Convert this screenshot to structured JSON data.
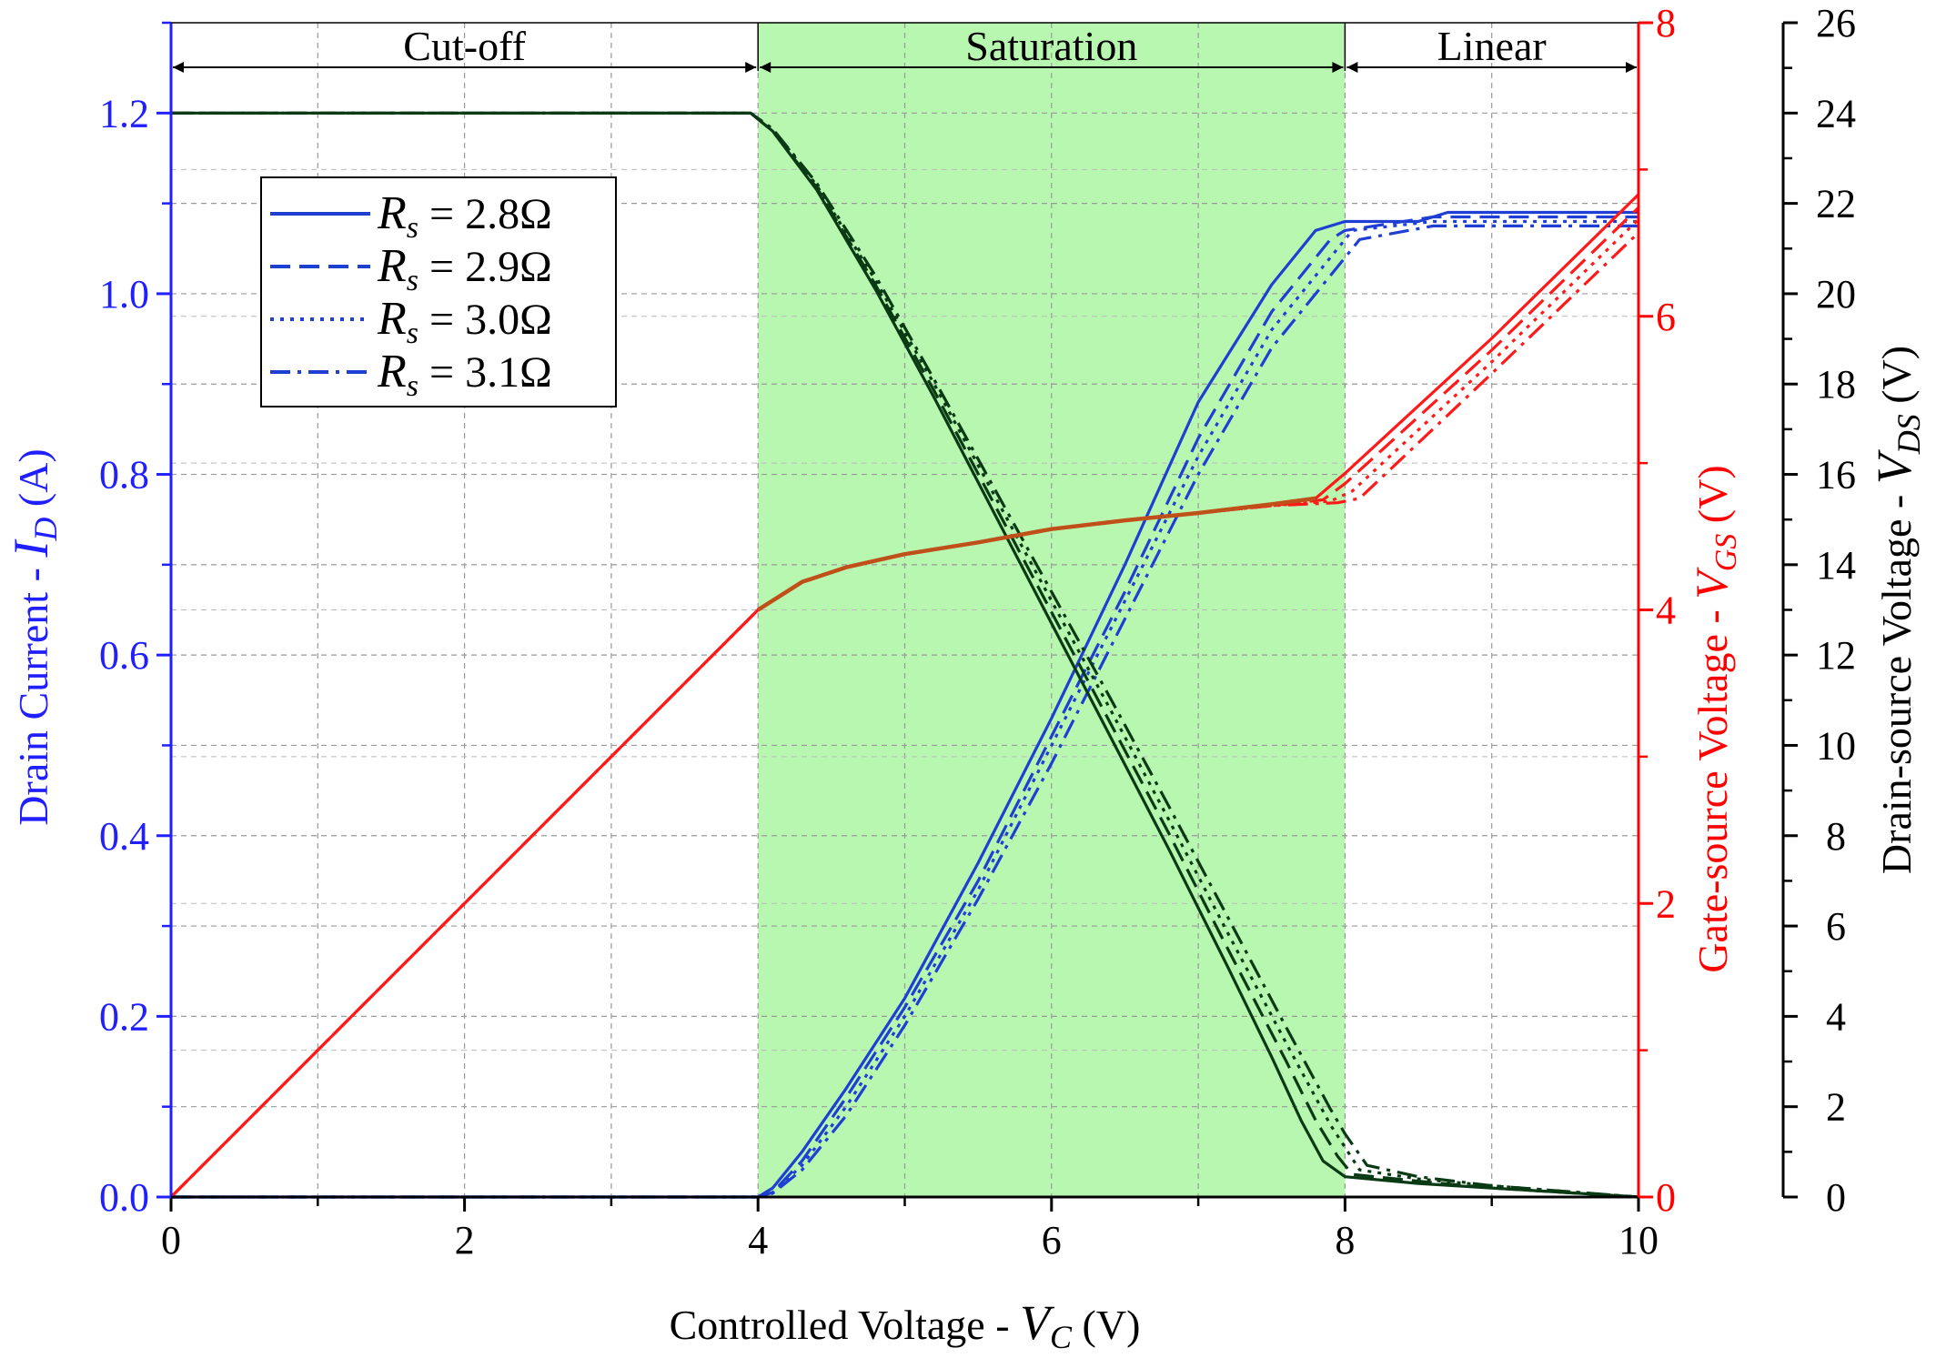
{
  "colors": {
    "drain_current": "#1f3fd4",
    "gate_source": "#ff1a1a",
    "gate_source_overlap": "#c0501a",
    "drain_source": "#0a3a14",
    "saturation_fill": "#b8f7b0",
    "axis_left": "#1f1fff",
    "axis_right1": "#ff0000",
    "axis_right2": "#000000"
  },
  "chart_data": {
    "type": "line",
    "xlabel": {
      "prefix": "Controlled Voltage - ",
      "symbol": "V",
      "sub": "C",
      "unit": " (V)"
    },
    "ylabel_left": {
      "prefix": "Drain Current - ",
      "symbol": "I",
      "sub": "D",
      "unit": " (A)"
    },
    "ylabel_right1": {
      "prefix": "Gate-source Voltage - ",
      "symbol": "V",
      "sub": "GS",
      "unit": " (V)"
    },
    "ylabel_right2": {
      "prefix": "Drain-source Voltage - ",
      "symbol": "V",
      "sub": "DS",
      "unit": " (V)"
    },
    "xlim": [
      0,
      10
    ],
    "ylim_left": [
      0,
      1.3
    ],
    "ylim_right1": [
      0,
      8
    ],
    "ylim_right2": [
      0,
      26
    ],
    "x_ticks": [
      "0",
      "2",
      "4",
      "6",
      "8",
      "10"
    ],
    "y_left_ticks": [
      "0.0",
      "0.2",
      "0.4",
      "0.6",
      "0.8",
      "1.0",
      "1.2"
    ],
    "y_right1_ticks": [
      "0",
      "2",
      "4",
      "6",
      "8"
    ],
    "y_right2_ticks": [
      "0",
      "2",
      "4",
      "6",
      "8",
      "10",
      "12",
      "14",
      "16",
      "18",
      "20",
      "22",
      "24",
      "26"
    ],
    "regions": [
      {
        "label": "Cut-off",
        "x_range": [
          0,
          4
        ]
      },
      {
        "label": "Saturation",
        "x_range": [
          4,
          8
        ]
      },
      {
        "label": "Linear",
        "x_range": [
          8,
          10
        ]
      }
    ],
    "legend": [
      {
        "symbol": "R",
        "sub": "s",
        "rest": " = 2.8Ω",
        "style": "solid"
      },
      {
        "symbol": "R",
        "sub": "s",
        "rest": " = 2.9Ω",
        "style": "dash"
      },
      {
        "symbol": "R",
        "sub": "s",
        "rest": " = 3.0Ω",
        "style": "dot"
      },
      {
        "symbol": "R",
        "sub": "s",
        "rest": " = 3.1Ω",
        "style": "dashdot"
      }
    ],
    "legend_position": "upper-left",
    "grid": true,
    "series": [
      {
        "quantity": "I_D",
        "axis": "left",
        "Rs": 2.8,
        "style": "solid",
        "x": [
          0,
          3.9,
          4.0,
          4.1,
          4.3,
          4.6,
          5.0,
          5.5,
          6.0,
          6.5,
          7.0,
          7.5,
          7.8,
          8.0,
          8.5,
          8.7,
          9.0,
          10.0
        ],
        "y": [
          0,
          0,
          0,
          0.01,
          0.05,
          0.12,
          0.22,
          0.37,
          0.53,
          0.7,
          0.88,
          1.01,
          1.07,
          1.08,
          1.08,
          1.09,
          1.09,
          1.09
        ]
      },
      {
        "quantity": "I_D",
        "axis": "left",
        "Rs": 2.9,
        "style": "dash",
        "x": [
          0,
          3.9,
          4.0,
          4.1,
          4.3,
          4.6,
          5.0,
          5.5,
          6.0,
          6.5,
          7.0,
          7.5,
          7.9,
          8.0,
          8.6,
          10.0
        ],
        "y": [
          0,
          0,
          0,
          0.005,
          0.04,
          0.11,
          0.21,
          0.35,
          0.51,
          0.67,
          0.84,
          0.98,
          1.06,
          1.07,
          1.085,
          1.085
        ]
      },
      {
        "quantity": "I_D",
        "axis": "left",
        "Rs": 3.0,
        "style": "dot",
        "x": [
          0,
          3.9,
          4.0,
          4.1,
          4.3,
          4.6,
          5.0,
          5.5,
          6.0,
          6.5,
          7.0,
          7.5,
          7.95,
          8.05,
          8.6,
          10.0
        ],
        "y": [
          0,
          0,
          0,
          0.005,
          0.035,
          0.1,
          0.2,
          0.34,
          0.5,
          0.66,
          0.82,
          0.96,
          1.05,
          1.07,
          1.08,
          1.08
        ]
      },
      {
        "quantity": "I_D",
        "axis": "left",
        "Rs": 3.1,
        "style": "dashdot",
        "x": [
          0,
          3.9,
          4.0,
          4.1,
          4.3,
          4.6,
          5.0,
          5.5,
          6.0,
          6.5,
          7.0,
          7.5,
          8.0,
          8.1,
          8.6,
          10.0
        ],
        "y": [
          0,
          0,
          0,
          0.004,
          0.03,
          0.09,
          0.19,
          0.33,
          0.48,
          0.64,
          0.8,
          0.94,
          1.04,
          1.06,
          1.075,
          1.075
        ]
      },
      {
        "quantity": "V_GS",
        "axis": "right1",
        "Rs": 2.8,
        "style": "solid",
        "x": [
          0,
          4.0,
          4.3,
          4.6,
          5.0,
          5.5,
          6.0,
          6.5,
          7.0,
          7.5,
          7.8,
          8.0,
          9.0,
          10.0
        ],
        "y": [
          0,
          4.0,
          4.19,
          4.29,
          4.38,
          4.46,
          4.55,
          4.61,
          4.66,
          4.72,
          4.76,
          4.93,
          5.85,
          6.83
        ]
      },
      {
        "quantity": "V_GS",
        "axis": "right1",
        "Rs": 2.9,
        "style": "dash",
        "x": [
          0,
          4.0,
          4.3,
          4.6,
          5.0,
          5.5,
          6.0,
          6.5,
          7.0,
          7.5,
          7.85,
          8.0,
          9.0,
          10.0
        ],
        "y": [
          0,
          4.0,
          4.19,
          4.29,
          4.38,
          4.46,
          4.55,
          4.61,
          4.66,
          4.71,
          4.75,
          4.86,
          5.77,
          6.74
        ]
      },
      {
        "quantity": "V_GS",
        "axis": "right1",
        "Rs": 3.0,
        "style": "dot",
        "x": [
          0,
          4.0,
          4.3,
          4.6,
          5.0,
          5.5,
          6.0,
          6.5,
          7.0,
          7.5,
          7.9,
          8.05,
          9.0,
          10.0
        ],
        "y": [
          0,
          4.0,
          4.19,
          4.29,
          4.38,
          4.46,
          4.55,
          4.61,
          4.66,
          4.71,
          4.74,
          4.81,
          5.69,
          6.66
        ]
      },
      {
        "quantity": "V_GS",
        "axis": "right1",
        "Rs": 3.1,
        "style": "dashdot",
        "x": [
          0,
          4.0,
          4.3,
          4.6,
          5.0,
          5.5,
          6.0,
          6.5,
          7.0,
          7.5,
          7.95,
          8.1,
          9.0,
          10.0
        ],
        "y": [
          0,
          4.0,
          4.19,
          4.29,
          4.38,
          4.46,
          4.55,
          4.61,
          4.66,
          4.71,
          4.73,
          4.76,
          5.61,
          6.57
        ]
      },
      {
        "quantity": "V_DS",
        "axis": "right2",
        "Rs": 2.8,
        "style": "solid",
        "x": [
          0,
          3.95,
          4.1,
          4.4,
          4.8,
          5.2,
          5.6,
          6.0,
          6.4,
          6.8,
          7.2,
          7.5,
          7.7,
          7.85,
          8.0,
          8.5,
          9.0,
          10.0
        ],
        "y": [
          24,
          24,
          23.6,
          22.3,
          20.1,
          17.7,
          15.2,
          12.7,
          10.2,
          7.7,
          5.1,
          3.1,
          1.7,
          0.8,
          0.45,
          0.3,
          0.2,
          0.0
        ]
      },
      {
        "quantity": "V_DS",
        "axis": "right2",
        "Rs": 2.9,
        "style": "dash",
        "x": [
          0,
          3.95,
          4.1,
          4.4,
          4.8,
          5.2,
          5.6,
          6.0,
          6.4,
          6.8,
          7.2,
          7.6,
          7.8,
          7.95,
          8.05,
          8.5,
          9.0,
          10.0
        ],
        "y": [
          24,
          24,
          23.6,
          22.35,
          20.2,
          17.85,
          15.4,
          12.95,
          10.5,
          8.05,
          5.5,
          3.0,
          1.7,
          0.9,
          0.5,
          0.35,
          0.2,
          0.0
        ]
      },
      {
        "quantity": "V_DS",
        "axis": "right2",
        "Rs": 3.0,
        "style": "dot",
        "x": [
          0,
          3.95,
          4.1,
          4.4,
          4.8,
          5.2,
          5.6,
          6.0,
          6.4,
          6.8,
          7.2,
          7.6,
          7.9,
          8.0,
          8.1,
          8.5,
          9.0,
          10.0
        ],
        "y": [
          24,
          24,
          23.65,
          22.4,
          20.3,
          18.0,
          15.6,
          13.2,
          10.8,
          8.35,
          5.85,
          3.4,
          1.6,
          1.1,
          0.6,
          0.4,
          0.25,
          0.0
        ]
      },
      {
        "quantity": "V_DS",
        "axis": "right2",
        "Rs": 3.1,
        "style": "dashdot",
        "x": [
          0,
          3.95,
          4.1,
          4.4,
          4.8,
          5.2,
          5.6,
          6.0,
          6.4,
          6.8,
          7.2,
          7.6,
          7.9,
          8.0,
          8.15,
          8.5,
          9.0,
          10.0
        ],
        "y": [
          24,
          24,
          23.65,
          22.45,
          20.4,
          18.1,
          15.75,
          13.4,
          11.05,
          8.65,
          6.2,
          3.75,
          1.95,
          1.4,
          0.7,
          0.45,
          0.25,
          0.0
        ]
      }
    ]
  }
}
